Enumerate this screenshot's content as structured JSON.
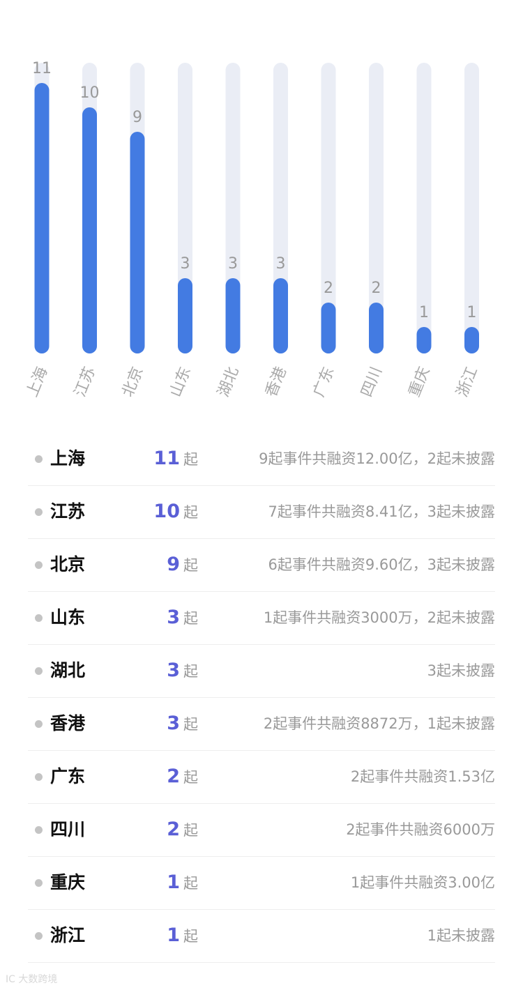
{
  "chart_data": {
    "type": "bar",
    "categories": [
      "上海",
      "江苏",
      "北京",
      "山东",
      "湖北",
      "香港",
      "广东",
      "四川",
      "重庆",
      "浙江"
    ],
    "values": [
      11,
      10,
      9,
      3,
      3,
      3,
      2,
      2,
      1,
      1
    ],
    "ylim": [
      0,
      12
    ],
    "grid": false,
    "legend": "none",
    "colors": {
      "bar": "#437be2",
      "track": "#eaedf5",
      "value_label": "#999999",
      "category_label": "#aaaaaa"
    }
  },
  "list": {
    "unit": "起",
    "rows": [
      {
        "name": "上海",
        "count": "11",
        "detail": "9起事件共融资12.00亿，2起未披露"
      },
      {
        "name": "江苏",
        "count": "10",
        "detail": "7起事件共融资8.41亿，3起未披露"
      },
      {
        "name": "北京",
        "count": "9",
        "detail": "6起事件共融资9.60亿，3起未披露"
      },
      {
        "name": "山东",
        "count": "3",
        "detail": "1起事件共融资3000万，2起未披露"
      },
      {
        "name": "湖北",
        "count": "3",
        "detail": "3起未披露"
      },
      {
        "name": "香港",
        "count": "3",
        "detail": "2起事件共融资8872万，1起未披露"
      },
      {
        "name": "广东",
        "count": "2",
        "detail": "2起事件共融资1.53亿"
      },
      {
        "name": "四川",
        "count": "2",
        "detail": "2起事件共融资6000万"
      },
      {
        "name": "重庆",
        "count": "1",
        "detail": "1起事件共融资3.00亿"
      },
      {
        "name": "浙江",
        "count": "1",
        "detail": "1起未披露"
      }
    ],
    "colors": {
      "count": "#5a5fd6",
      "name": "#111111",
      "detail": "#999999",
      "dot": "#c4c4c4"
    }
  },
  "watermark": "IC 大数跨境"
}
